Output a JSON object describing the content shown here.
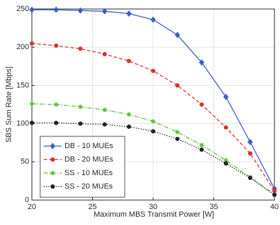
{
  "chart_data": {
    "type": "line",
    "xlabel": "Maximum MBS Transmit Power [W]",
    "ylabel": "SBS Sum Rate [Mbps]",
    "x": [
      20,
      22,
      24,
      26,
      28,
      30,
      32,
      34,
      36,
      38,
      40
    ],
    "xlim": [
      20,
      40
    ],
    "xticks": [
      20,
      25,
      30,
      35,
      40
    ],
    "ylim": [
      0,
      250
    ],
    "yticks": [
      0,
      50,
      100,
      150,
      200,
      250
    ],
    "grid": true,
    "legend": "lower left",
    "series": [
      {
        "name": "DB - 10 MUEs",
        "color": "#3a5fc4",
        "dash": "solid",
        "marker": "diamond",
        "values": [
          249,
          249,
          248,
          247,
          244,
          236,
          216,
          180,
          135,
          76,
          15
        ]
      },
      {
        "name": "DB - 20 MUEs",
        "color": "#e0302a",
        "dash": "dashed",
        "marker": "circle",
        "values": [
          205,
          202,
          198,
          191,
          182,
          169,
          150,
          125,
          95,
          61,
          12
        ]
      },
      {
        "name": "SS - 10 MUEs",
        "color": "#5cc43a",
        "dash": "dashdot",
        "marker": "star",
        "values": [
          126,
          125,
          122,
          118,
          112,
          103,
          89,
          72,
          52,
          30,
          7
        ]
      },
      {
        "name": "SS - 20 MUEs",
        "color": "#222222",
        "dash": "dotted",
        "marker": "circle",
        "values": [
          101,
          101,
          100,
          99,
          96,
          90,
          80,
          66,
          48,
          29,
          7
        ]
      }
    ]
  }
}
